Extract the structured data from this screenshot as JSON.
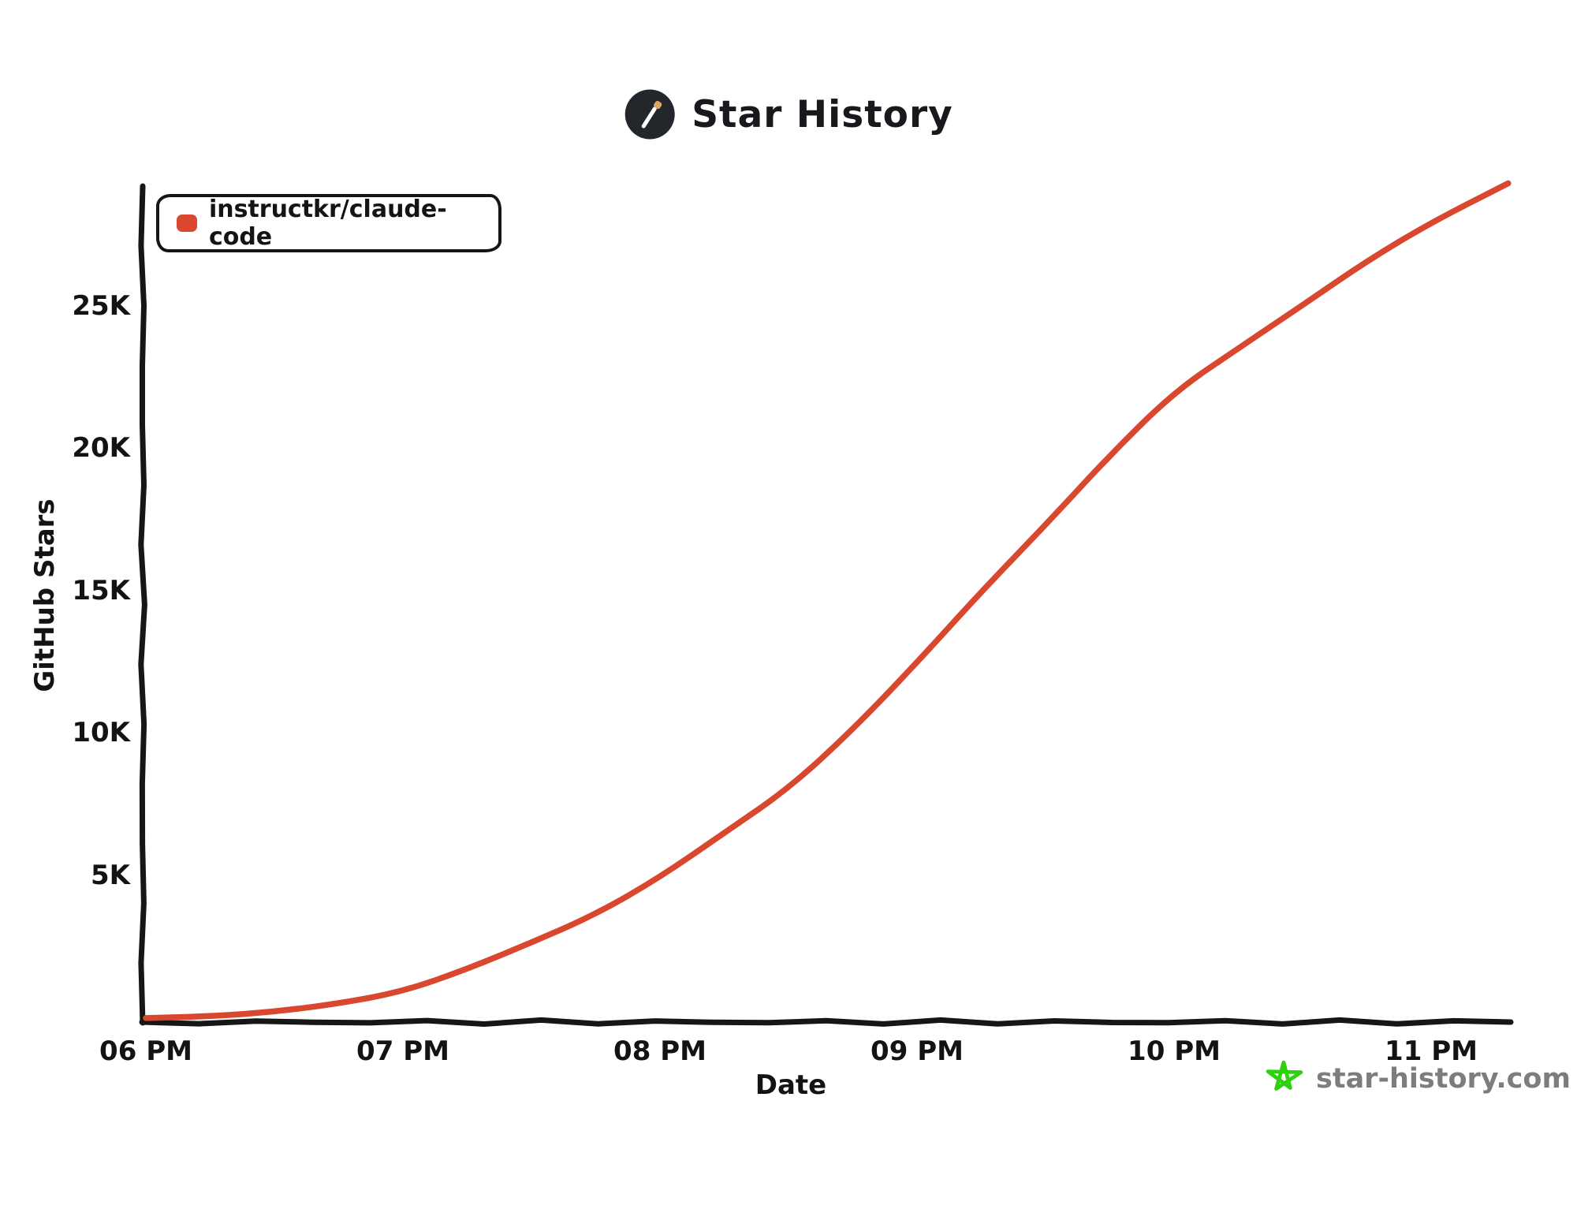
{
  "header": {
    "title": "Star History",
    "logo_icon": "wand-in-dark-circle",
    "logo_circle_color": "#23262b",
    "logo_wand_tip_color": "#dfa263"
  },
  "legend": {
    "series_label": "instructkr/claude-code",
    "marker_color": "#d9472e"
  },
  "watermark": {
    "text": "star-history.com",
    "star_icon_color": "#2ed20c",
    "text_color": "#7d7d7d"
  },
  "chart_data": {
    "type": "line",
    "title": "Star History",
    "xlabel": "Date",
    "ylabel": "GitHub Stars",
    "x_tick_labels": [
      "06 PM",
      "07 PM",
      "08 PM",
      "09 PM",
      "10 PM",
      "11 PM"
    ],
    "y_tick_labels": [
      "5K",
      "10K",
      "15K",
      "20K",
      "25K"
    ],
    "y_tick_values": [
      5000,
      10000,
      15000,
      20000,
      25000
    ],
    "ylim": [
      0,
      29500
    ],
    "xlim_hours": [
      18.0,
      23.35
    ],
    "grid": false,
    "legend_position": "top-left",
    "style": "hand-drawn-xkcd",
    "axis_color": "#161616",
    "series": [
      {
        "name": "instructkr/claude-code",
        "color": "#d9472e",
        "x_hours": [
          18.0,
          18.25,
          18.5,
          18.75,
          19.0,
          19.25,
          19.5,
          19.75,
          20.0,
          20.25,
          20.5,
          20.75,
          21.0,
          21.25,
          21.5,
          21.75,
          22.0,
          22.25,
          22.5,
          22.75,
          23.0,
          23.3
        ],
        "stars": [
          30,
          120,
          230,
          520,
          1000,
          1750,
          2650,
          3700,
          5000,
          6500,
          8100,
          10200,
          12500,
          15000,
          17400,
          19800,
          22000,
          23600,
          25100,
          26600,
          28000,
          29400
        ]
      }
    ]
  }
}
